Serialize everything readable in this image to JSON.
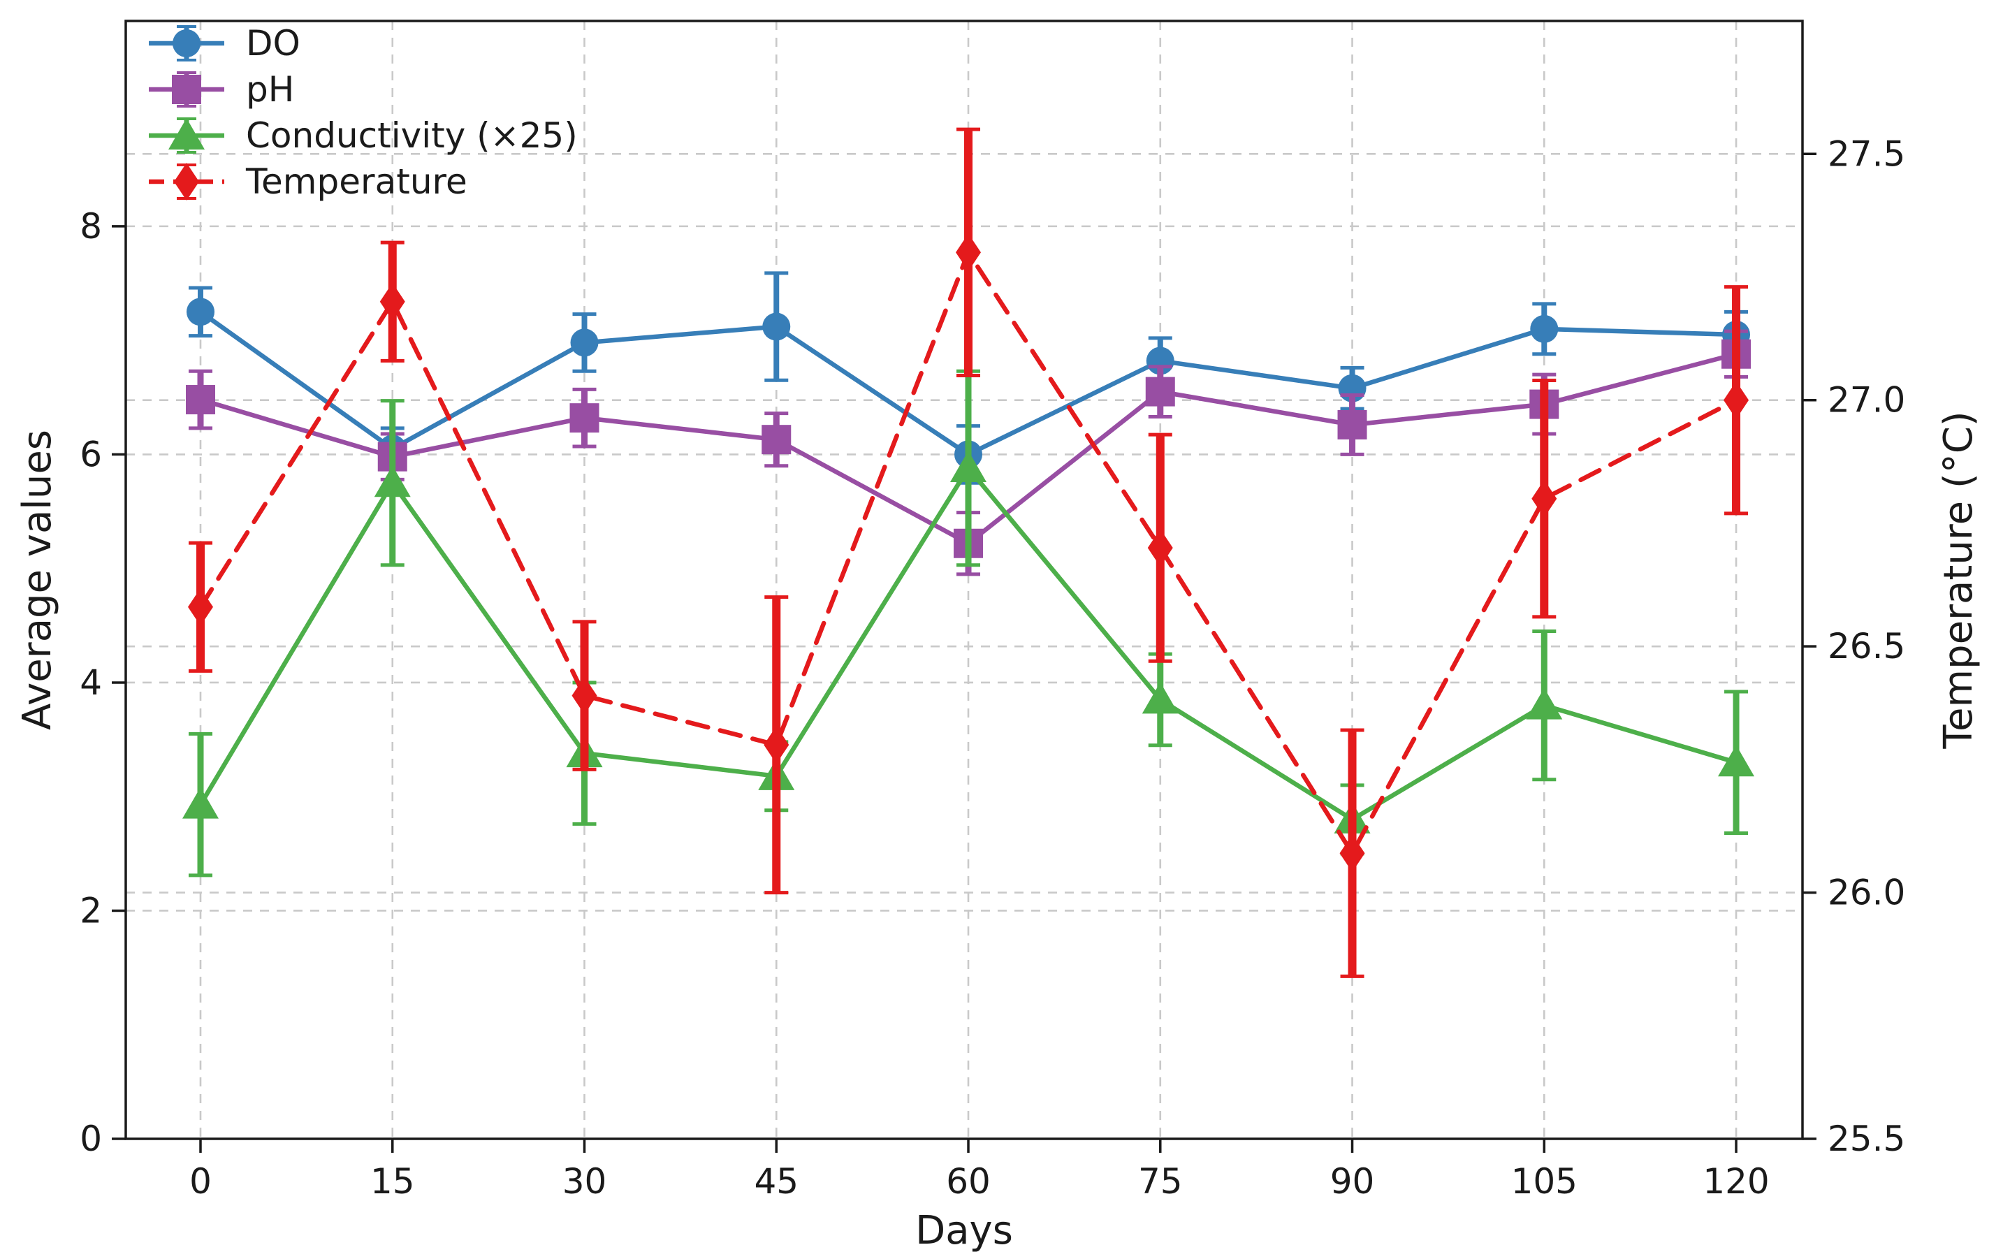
{
  "chart_data": {
    "type": "line",
    "title": "",
    "xlabel": "Days",
    "ylabel_left": "Average values",
    "ylabel_right": "Temperature (°C)",
    "x": [
      0,
      15,
      30,
      45,
      60,
      75,
      90,
      105,
      120
    ],
    "xticks": [
      "0",
      "15",
      "30",
      "45",
      "60",
      "75",
      "90",
      "105",
      "120"
    ],
    "yticks_left": [
      "0",
      "2",
      "4",
      "6",
      "8"
    ],
    "ytick_left_values": [
      0,
      2,
      4,
      6,
      8
    ],
    "yticks_right": [
      "25.5",
      "26.0",
      "26.5",
      "27.0",
      "27.5"
    ],
    "ytick_right_values": [
      25.5,
      26.0,
      26.5,
      27.0,
      27.5
    ],
    "ylim_left": [
      0,
      9.8
    ],
    "ylim_right": [
      25.5,
      27.77
    ],
    "grid": "both-axes, dashed light gray, horizontal and vertical",
    "legend_position": "upper left, no frame",
    "colors": {
      "do": "#377eb8",
      "ph": "#984ea3",
      "conductivity": "#4daf4a",
      "temperature": "#e41a1c",
      "grid": "#c9c9c9",
      "axis": "#1a1a1a"
    },
    "series": [
      {
        "name": "DO",
        "axis": "left",
        "color": "#377eb8",
        "marker": "circle",
        "linestyle": "solid",
        "values": [
          7.25,
          6.05,
          6.98,
          7.12,
          6.0,
          6.82,
          6.58,
          7.1,
          7.05
        ],
        "errors": [
          0.21,
          0.18,
          0.25,
          0.47,
          0.25,
          0.2,
          0.18,
          0.22,
          0.2
        ]
      },
      {
        "name": "pH",
        "axis": "left",
        "color": "#984ea3",
        "marker": "square",
        "linestyle": "solid",
        "values": [
          6.48,
          5.98,
          6.32,
          6.13,
          5.22,
          6.55,
          6.26,
          6.44,
          6.88
        ],
        "errors": [
          0.25,
          0.2,
          0.25,
          0.23,
          0.27,
          0.22,
          0.26,
          0.26,
          0.2
        ]
      },
      {
        "name": "Conductivity (×25)",
        "axis": "left",
        "color": "#4daf4a",
        "marker": "triangle",
        "linestyle": "solid",
        "values": [
          2.93,
          5.75,
          3.38,
          3.18,
          5.88,
          3.85,
          2.8,
          3.8,
          3.3
        ],
        "errors": [
          0.62,
          0.72,
          0.62,
          0.3,
          0.85,
          0.4,
          0.3,
          0.65,
          0.62
        ]
      },
      {
        "name": "Temperature",
        "axis": "right",
        "color": "#e41a1c",
        "marker": "diamond",
        "linestyle": "dashed",
        "values": [
          26.58,
          27.2,
          26.4,
          26.3,
          27.3,
          26.7,
          26.08,
          26.8,
          27.0
        ],
        "errors": [
          0.13,
          0.12,
          0.15,
          0.3,
          0.25,
          0.23,
          0.25,
          0.24,
          0.23
        ]
      }
    ]
  }
}
